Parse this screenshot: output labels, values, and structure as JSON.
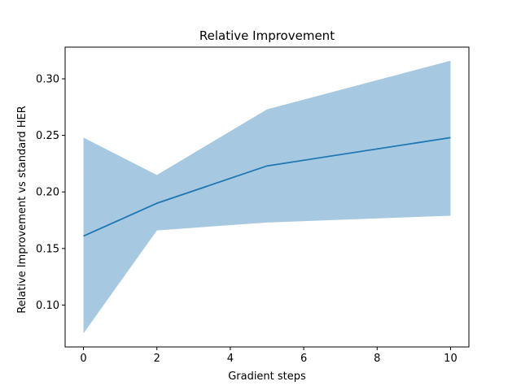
{
  "chart_data": {
    "type": "line",
    "title": "Relative Improvement",
    "xlabel": "Gradient steps",
    "ylabel": "Relative Improvement vs standard HER",
    "x": [
      0,
      2,
      5,
      10
    ],
    "series": [
      {
        "values": [
          0.161,
          0.19,
          0.223,
          0.248
        ],
        "lower": [
          0.075,
          0.166,
          0.173,
          0.179
        ],
        "upper": [
          0.248,
          0.215,
          0.273,
          0.316
        ],
        "line_color": "#1f77b4",
        "band_color": "#a6c8e0"
      }
    ],
    "xlim": [
      -0.5,
      10.5
    ],
    "ylim": [
      0.063,
      0.328
    ],
    "xticks": [
      0,
      2,
      4,
      6,
      8,
      10
    ],
    "xtick_labels": [
      "0",
      "2",
      "4",
      "6",
      "8",
      "10"
    ],
    "yticks": [
      0.1,
      0.15,
      0.2,
      0.25,
      0.3
    ],
    "ytick_labels": [
      "0.10",
      "0.15",
      "0.20",
      "0.25",
      "0.30"
    ],
    "grid": false,
    "legend": false
  }
}
